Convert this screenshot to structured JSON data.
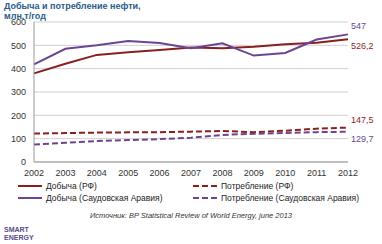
{
  "chart_data": {
    "type": "line",
    "title": "Добыча и потребление нефти,",
    "subtitle": "млн.т/год",
    "categories": [
      "2002",
      "2003",
      "2004",
      "2005",
      "2006",
      "2007",
      "2008",
      "2009",
      "2010",
      "2011",
      "2012"
    ],
    "series": [
      {
        "name": "Добыча (РФ)",
        "color": "#8b1f1f",
        "line_style": "solid",
        "values": [
          380,
          421,
          459,
          470,
          480,
          491,
          488,
          494,
          505,
          511,
          526.2
        ],
        "value_labels": [
          null,
          null,
          null,
          null,
          null,
          null,
          null,
          null,
          null,
          null,
          "526,2"
        ]
      },
      {
        "name": "Потребление (РФ)",
        "color": "#8b1f1f",
        "line_style": "dashed",
        "values": [
          122,
          124,
          126,
          127,
          128,
          130,
          133,
          128,
          134,
          143,
          147.5
        ],
        "value_labels": [
          null,
          null,
          null,
          null,
          null,
          null,
          null,
          null,
          null,
          null,
          "147,5"
        ]
      },
      {
        "name": "Добыча (Саудовская Аравия)",
        "color": "#6b4592",
        "line_style": "solid",
        "values": [
          418,
          485,
          500,
          519,
          510,
          488,
          509,
          456,
          467,
          525,
          547
        ],
        "value_labels": [
          null,
          null,
          null,
          null,
          null,
          null,
          null,
          null,
          null,
          null,
          "547"
        ]
      },
      {
        "name": "Потребление (Саудовская Аравия)",
        "color": "#6b4592",
        "line_style": "dashed",
        "values": [
          75,
          82,
          90,
          94,
          98,
          104,
          116,
          121,
          124,
          128,
          129.7
        ],
        "value_labels": [
          null,
          null,
          null,
          null,
          null,
          null,
          null,
          null,
          null,
          null,
          "129,7"
        ]
      }
    ],
    "ylim": [
      0,
      600
    ],
    "yticks": [
      0,
      100,
      200,
      300,
      400,
      500,
      600
    ],
    "grid": true,
    "legend": "bottom",
    "source": "Источник: BP Statistical Review of World Energy, june 2013",
    "logo": "SMART ENERGY"
  }
}
